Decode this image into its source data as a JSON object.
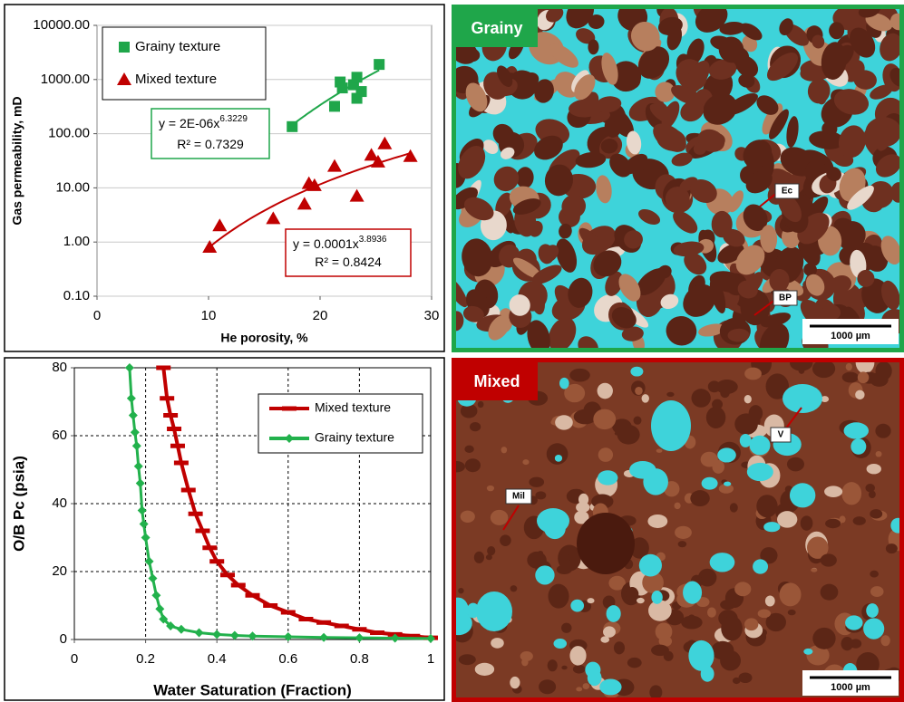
{
  "chart_data": [
    {
      "type": "scatter",
      "xlabel": "He porosity, %",
      "ylabel": "Gas permeability, mD",
      "xlim": [
        0,
        30
      ],
      "xticks": [
        0,
        10,
        20,
        30
      ],
      "yscale": "log",
      "ylim": [
        0.1,
        10000
      ],
      "yticks": [
        {
          "value": 0.1,
          "label": "0.10"
        },
        {
          "value": 1,
          "label": "1.00"
        },
        {
          "value": 10,
          "label": "10.00"
        },
        {
          "value": 100,
          "label": "100.00"
        },
        {
          "value": 1000,
          "label": "1000.00"
        },
        {
          "value": 10000,
          "label": "10000.00"
        }
      ],
      "grid": "y",
      "legend_position": "upper left",
      "series": [
        {
          "name": "Grainy texture",
          "color": "#1fa64a",
          "marker": "square",
          "x": [
            17.5,
            21.3,
            21.8,
            22.0,
            23.0,
            23.3,
            23.3,
            23.7,
            25.3
          ],
          "values": [
            135,
            320,
            900,
            700,
            800,
            1100,
            450,
            600,
            1900
          ],
          "trendline": {
            "type": "power",
            "equation_lhs": "y = ",
            "coefficient": {
              "value": 2e-06,
              "label": "2E-06"
            },
            "variable": "x",
            "exponent": 6.3229,
            "r2_label": "R² = ",
            "r2": 0.7329
          }
        },
        {
          "name": "Mixed texture",
          "color": "#c00000",
          "marker": "triangle",
          "x": [
            10.1,
            11.0,
            15.8,
            18.6,
            19.0,
            19.5,
            21.3,
            23.3,
            24.6,
            25.2,
            25.8,
            28.1
          ],
          "values": [
            0.8,
            2,
            2.7,
            5,
            12,
            11,
            25,
            7,
            40,
            30,
            65,
            38
          ],
          "trendline": {
            "type": "power",
            "equation_lhs": "y = ",
            "coefficient": {
              "value": 0.0001,
              "label": "0.0001"
            },
            "variable": "x",
            "exponent": 3.8936,
            "r2_label": "R² = ",
            "r2": 0.8424
          }
        }
      ]
    },
    {
      "type": "line",
      "xlabel": "Water Saturation (Fraction)",
      "ylabel": "O/B Pc (psia)",
      "xlim": [
        0,
        1
      ],
      "xticks": [
        0,
        0.2,
        0.4,
        0.6,
        0.8,
        1
      ],
      "ylim": [
        0,
        80
      ],
      "yticks": [
        0,
        20,
        40,
        60,
        80
      ],
      "grid": "dashed",
      "legend_position": "upper right",
      "series": [
        {
          "name": "Mixed texture",
          "color": "#c00000",
          "marker": "dash",
          "x": [
            0.25,
            0.26,
            0.27,
            0.28,
            0.29,
            0.3,
            0.32,
            0.34,
            0.36,
            0.38,
            0.4,
            0.43,
            0.46,
            0.5,
            0.55,
            0.6,
            0.65,
            0.7,
            0.75,
            0.8,
            0.85,
            0.9,
            0.95,
            1.0
          ],
          "values": [
            80,
            71,
            66,
            62,
            57,
            52,
            44,
            37,
            32,
            27,
            23,
            19,
            16,
            13,
            10,
            8,
            6,
            5,
            4,
            3,
            2,
            1.5,
            1,
            0.5
          ]
        },
        {
          "name": "Grainy texture",
          "color": "#22b14c",
          "marker": "diamond",
          "x": [
            0.155,
            0.16,
            0.165,
            0.17,
            0.175,
            0.18,
            0.185,
            0.19,
            0.195,
            0.2,
            0.21,
            0.22,
            0.23,
            0.24,
            0.25,
            0.27,
            0.3,
            0.35,
            0.4,
            0.45,
            0.5,
            0.6,
            0.7,
            0.8,
            0.9,
            1.0
          ],
          "values": [
            80,
            71,
            66,
            61,
            57,
            51,
            46,
            38,
            34,
            30,
            23,
            18,
            13,
            9,
            6,
            4,
            3,
            2,
            1.5,
            1.2,
            1,
            0.8,
            0.6,
            0.5,
            0.4,
            0.3
          ]
        }
      ]
    }
  ],
  "micrographs": [
    {
      "label": "Grainy",
      "annotations": [
        "Ec",
        "BP"
      ],
      "scale": "1000 µm"
    },
    {
      "label": "Mixed",
      "annotations": [
        "Mil",
        "V"
      ],
      "scale": "1000 µm"
    }
  ]
}
